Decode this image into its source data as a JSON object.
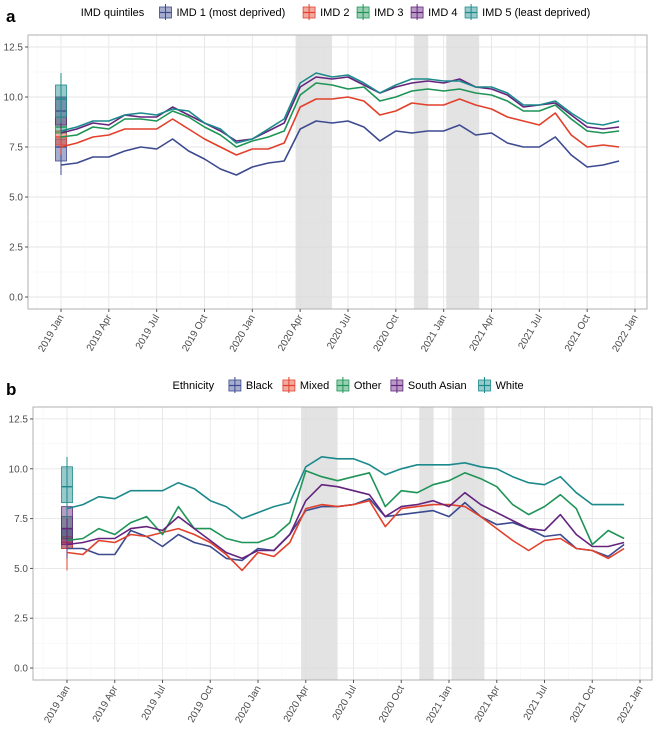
{
  "chart_data": [
    {
      "panel_label": "a",
      "type": "line",
      "legend_title": "IMD quintiles",
      "legend_position": "top",
      "x": [
        "2019-01",
        "2019-02",
        "2019-03",
        "2019-04",
        "2019-05",
        "2019-06",
        "2019-07",
        "2019-08",
        "2019-09",
        "2019-10",
        "2019-11",
        "2019-12",
        "2020-01",
        "2020-02",
        "2020-03",
        "2020-04",
        "2020-05",
        "2020-06",
        "2020-07",
        "2020-08",
        "2020-09",
        "2020-10",
        "2020-11",
        "2020-12",
        "2021-01",
        "2021-02",
        "2021-03",
        "2021-04",
        "2021-05",
        "2021-06",
        "2021-07",
        "2021-08",
        "2021-09",
        "2021-10",
        "2021-11",
        "2021-12"
      ],
      "x_ticks": [
        "2019 Jan",
        "2019 Apr",
        "2019 Jul",
        "2019 Oct",
        "2020 Jan",
        "2020 Apr",
        "2020 Jul",
        "2020 Oct",
        "2021 Jan",
        "2021 Apr",
        "2021 Jul",
        "2021 Oct",
        "2022 Jan"
      ],
      "y_ticks": [
        "0.0",
        "2.5",
        "5.0",
        "7.5",
        "10.0",
        "12.5"
      ],
      "ylim": [
        -0.6,
        13.1
      ],
      "grid": true,
      "shaded_periods": [
        [
          "2020-03-23",
          "2020-06-01"
        ],
        [
          "2020-11-05",
          "2020-12-02"
        ],
        [
          "2021-01-06",
          "2021-03-08"
        ]
      ],
      "series": [
        {
          "name": "IMD 1 (most deprived)",
          "color": "#3C4A90",
          "values": [
            6.6,
            6.7,
            7.0,
            7.0,
            7.3,
            7.5,
            7.4,
            7.9,
            7.3,
            6.9,
            6.4,
            6.1,
            6.5,
            6.7,
            6.8,
            8.4,
            8.8,
            8.7,
            8.8,
            8.5,
            7.8,
            8.3,
            8.2,
            8.3,
            8.3,
            8.6,
            8.1,
            8.2,
            7.7,
            7.5,
            7.5,
            8.0,
            7.1,
            6.5,
            6.6,
            6.8
          ],
          "box": [
            6.1,
            6.8,
            7.5,
            7.9,
            8.4
          ]
        },
        {
          "name": "IMD 2",
          "color": "#E2402B",
          "values": [
            7.5,
            7.7,
            8.0,
            8.1,
            8.4,
            8.4,
            8.4,
            8.9,
            8.4,
            7.9,
            7.5,
            7.1,
            7.4,
            7.4,
            7.7,
            9.5,
            9.9,
            9.9,
            10.0,
            9.8,
            9.1,
            9.3,
            9.7,
            9.6,
            9.6,
            9.9,
            9.6,
            9.4,
            9.0,
            8.8,
            8.6,
            9.2,
            8.1,
            7.5,
            7.6,
            7.5
          ],
          "box": [
            7.1,
            7.6,
            8.0,
            8.3,
            8.6
          ]
        },
        {
          "name": "IMD 3",
          "color": "#1E9456",
          "values": [
            8.0,
            8.1,
            8.5,
            8.4,
            8.9,
            8.9,
            8.8,
            9.3,
            9.0,
            8.5,
            8.1,
            7.5,
            7.8,
            8.0,
            8.3,
            10.1,
            10.7,
            10.6,
            10.4,
            10.5,
            9.8,
            10.0,
            10.3,
            10.4,
            10.3,
            10.4,
            10.2,
            10.1,
            9.8,
            9.3,
            9.3,
            9.6,
            8.9,
            8.3,
            8.2,
            8.3
          ],
          "box": [
            7.9,
            8.2,
            8.5,
            9.0,
            9.5
          ]
        },
        {
          "name": "IMD 4",
          "color": "#64247E",
          "values": [
            8.2,
            8.4,
            8.7,
            8.6,
            9.1,
            9.0,
            9.0,
            9.5,
            9.1,
            8.7,
            8.3,
            7.8,
            7.9,
            8.3,
            8.7,
            10.5,
            11.0,
            10.9,
            11.0,
            10.6,
            10.2,
            10.5,
            10.7,
            10.8,
            10.7,
            10.9,
            10.5,
            10.4,
            10.1,
            9.5,
            9.6,
            9.7,
            9.1,
            8.5,
            8.4,
            8.5
          ],
          "box": [
            8.3,
            8.6,
            9.3,
            10.0,
            10.6
          ]
        },
        {
          "name": "IMD 5 (least deprived)",
          "color": "#1C8A8C",
          "values": [
            8.3,
            8.5,
            8.8,
            8.8,
            9.1,
            9.2,
            9.1,
            9.4,
            9.3,
            8.7,
            8.4,
            7.7,
            7.9,
            8.4,
            8.9,
            10.7,
            11.2,
            11.0,
            11.1,
            10.7,
            10.2,
            10.6,
            10.9,
            10.9,
            10.8,
            10.8,
            10.5,
            10.5,
            10.2,
            9.6,
            9.6,
            9.8,
            9.2,
            8.7,
            8.6,
            8.8
          ],
          "box": [
            8.7,
            9.0,
            9.9,
            10.6,
            11.2
          ]
        }
      ]
    },
    {
      "panel_label": "b",
      "type": "line",
      "legend_title": "Ethnicity",
      "legend_position": "top",
      "x": [
        "2019-01",
        "2019-02",
        "2019-03",
        "2019-04",
        "2019-05",
        "2019-06",
        "2019-07",
        "2019-08",
        "2019-09",
        "2019-10",
        "2019-11",
        "2019-12",
        "2020-01",
        "2020-02",
        "2020-03",
        "2020-04",
        "2020-05",
        "2020-06",
        "2020-07",
        "2020-08",
        "2020-09",
        "2020-10",
        "2020-11",
        "2020-12",
        "2021-01",
        "2021-02",
        "2021-03",
        "2021-04",
        "2021-05",
        "2021-06",
        "2021-07",
        "2021-08",
        "2021-09",
        "2021-10",
        "2021-11",
        "2021-12"
      ],
      "x_ticks": [
        "2019 Jan",
        "2019 Apr",
        "2019 Jul",
        "2019 Oct",
        "2020 Jan",
        "2020 Apr",
        "2020 Jul",
        "2020 Oct",
        "2021 Jan",
        "2021 Apr",
        "2021 Jul",
        "2021 Oct",
        "2022 Jan"
      ],
      "y_ticks": [
        "0.0",
        "2.5",
        "5.0",
        "7.5",
        "10.0",
        "12.5"
      ],
      "ylim": [
        -0.6,
        13.1
      ],
      "grid": true,
      "shaded_periods": [
        [
          "2020-03-23",
          "2020-06-01"
        ],
        [
          "2020-11-05",
          "2020-12-02"
        ],
        [
          "2021-01-06",
          "2021-03-08"
        ]
      ],
      "series": [
        {
          "name": "Black",
          "color": "#3C4A90",
          "values": [
            6.0,
            6.0,
            5.7,
            5.7,
            6.9,
            6.6,
            6.1,
            6.7,
            6.3,
            6.1,
            5.5,
            5.4,
            6.0,
            5.9,
            6.7,
            7.9,
            8.1,
            8.1,
            8.2,
            8.5,
            7.6,
            7.7,
            7.8,
            7.9,
            7.6,
            8.3,
            7.6,
            7.2,
            7.3,
            7.0,
            6.6,
            6.7,
            6.0,
            5.9,
            5.6,
            6.2
          ],
          "box": [
            5.5,
            6.0,
            6.5,
            7.0,
            7.6
          ]
        },
        {
          "name": "Mixed",
          "color": "#E2402B",
          "values": [
            5.8,
            5.7,
            6.4,
            6.3,
            6.7,
            6.6,
            6.8,
            7.0,
            6.7,
            6.3,
            5.7,
            4.9,
            5.8,
            5.6,
            6.3,
            8.0,
            8.2,
            8.1,
            8.2,
            8.4,
            7.1,
            8.0,
            8.1,
            8.2,
            8.2,
            8.1,
            7.6,
            7.0,
            6.4,
            5.9,
            6.4,
            6.5,
            6.0,
            5.9,
            5.5,
            6.0
          ],
          "box": [
            4.9,
            6.0,
            6.3,
            6.6,
            7.5
          ]
        },
        {
          "name": "Other",
          "color": "#1E9456",
          "values": [
            6.4,
            6.5,
            7.0,
            6.7,
            7.3,
            7.6,
            6.7,
            8.1,
            7.0,
            7.0,
            6.5,
            6.3,
            6.3,
            6.6,
            7.3,
            9.9,
            9.6,
            9.4,
            9.6,
            9.8,
            8.1,
            8.9,
            8.8,
            9.2,
            9.4,
            9.8,
            9.5,
            9.1,
            8.2,
            7.7,
            8.1,
            8.7,
            8.0,
            6.2,
            6.9,
            6.5
          ],
          "box": [
            6.3,
            6.5,
            7.0,
            7.6,
            8.1
          ]
        },
        {
          "name": "South Asian",
          "color": "#64247E",
          "values": [
            6.2,
            6.3,
            6.5,
            6.5,
            7.0,
            7.1,
            6.9,
            7.6,
            7.0,
            6.4,
            5.8,
            5.5,
            5.9,
            5.9,
            6.7,
            8.4,
            9.2,
            9.1,
            8.9,
            8.7,
            7.6,
            8.1,
            8.2,
            8.4,
            8.1,
            8.8,
            8.2,
            7.8,
            7.4,
            7.0,
            6.9,
            7.7,
            6.7,
            6.1,
            6.1,
            6.3
          ],
          "box": [
            5.5,
            6.2,
            7.0,
            8.1,
            8.1
          ]
        },
        {
          "name": "White",
          "color": "#1C8A8C",
          "values": [
            8.0,
            8.2,
            8.6,
            8.5,
            8.9,
            8.9,
            8.9,
            9.3,
            9.0,
            8.4,
            8.1,
            7.5,
            7.8,
            8.1,
            8.3,
            10.1,
            10.6,
            10.5,
            10.5,
            10.2,
            9.7,
            10.0,
            10.2,
            10.2,
            10.2,
            10.3,
            10.1,
            10.0,
            9.6,
            9.3,
            9.2,
            9.6,
            8.8,
            8.2,
            8.2,
            8.2
          ],
          "box": [
            7.5,
            8.3,
            9.1,
            10.1,
            10.6
          ]
        }
      ]
    }
  ]
}
